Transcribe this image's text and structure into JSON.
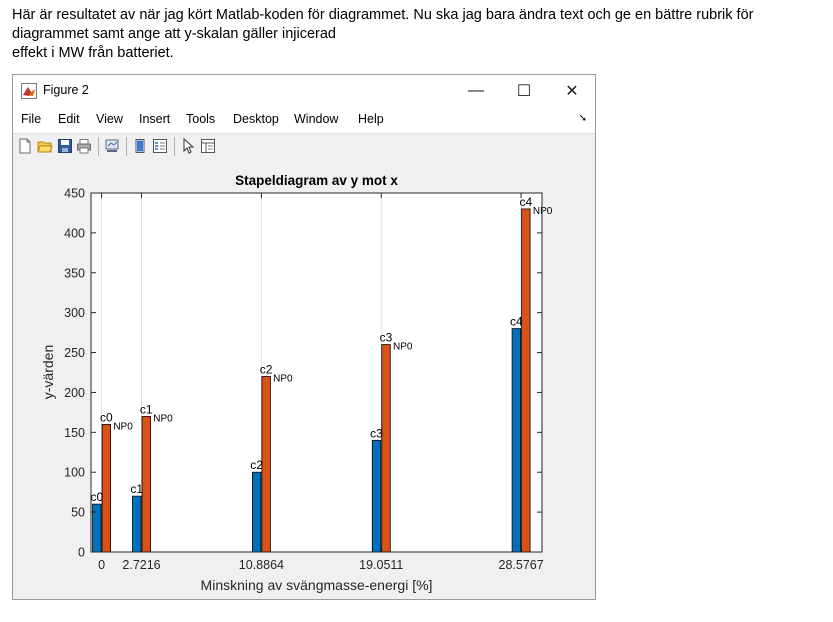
{
  "document": {
    "line1": "Här är resultatet av   när jag kört Matlab-koden för diagrammet. Nu ska jag bara ändra text och ge en bättre rubrik för",
    "line2": "diagrammet samt ange att y-skalan gäller injicerad",
    "line3": "effekt i MW från batteriet."
  },
  "window": {
    "title": "Figure 2",
    "minimize": "—",
    "maximize": "☐",
    "close": "✕"
  },
  "menu": {
    "items": [
      "File",
      "Edit",
      "View",
      "Insert",
      "Tools",
      "Desktop",
      "Window",
      "Help"
    ],
    "dock_arrow": "➘"
  },
  "toolbar": {
    "icons": [
      "new-figure-icon",
      "open-file-icon",
      "save-icon",
      "print-icon",
      "link-plot-icon",
      "colorbar-icon",
      "legend-icon",
      "pointer-icon",
      "property-inspector-icon"
    ]
  },
  "chart_data": {
    "type": "bar",
    "title": "Stapeldiagram av y mot x",
    "xlabel": "Minskning av svängmasse-energi [%]",
    "ylabel": "y-värden",
    "ylim": [
      0,
      450
    ],
    "yticks": [
      0,
      50,
      100,
      150,
      200,
      250,
      300,
      350,
      400,
      450
    ],
    "x": [
      0,
      2.7216,
      10.8864,
      19.0511,
      28.5767
    ],
    "xticklabels": [
      "0",
      "2.7216",
      "10.8864",
      "19.0511",
      "28.5767"
    ],
    "grid": "vertical",
    "series": [
      {
        "values": [
          60,
          70,
          100,
          140,
          280
        ],
        "color": "#0072bd"
      },
      {
        "values": [
          160,
          170,
          220,
          260,
          430
        ],
        "color": "#d95319"
      }
    ],
    "labels": {
      "blue": [
        "c0",
        "c1",
        "c2",
        "c3",
        "c4"
      ],
      "orange_main": [
        "c0",
        "c1",
        "c2",
        "c3",
        "c4"
      ],
      "orange_sub": "NP0"
    }
  }
}
